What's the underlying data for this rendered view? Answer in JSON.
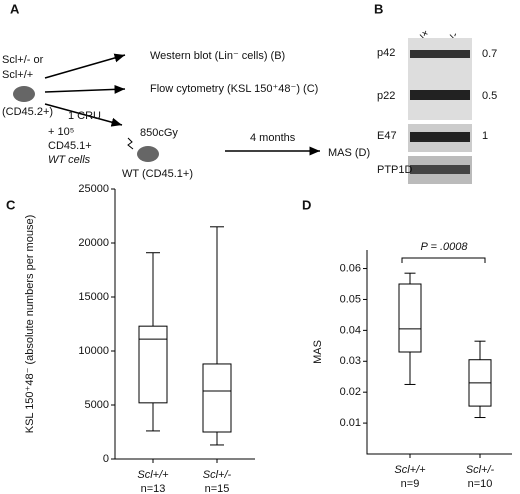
{
  "panel_a": {
    "label": "A",
    "donor_1": "Scl+/- or",
    "donor_2": "Scl+/+",
    "donor_3": "(CD45.2+)",
    "western": "Western blot (Lin⁻ cells) (B)",
    "flow": "Flow cytometry (KSL 150⁺48⁻) (C)",
    "cru": "1 CRU",
    "cells_1": "+ 10⁵",
    "cells_2": "CD45.1+",
    "cells_3": "WT cells",
    "dose": "850cGy",
    "recipient": "WT (CD45.1+)",
    "time": "4 months",
    "mas": "MAS (D)"
  },
  "panel_b": {
    "label": "B",
    "lanes": [
      "Scl+/+",
      "Scl+/-"
    ],
    "proteins": [
      "p42",
      "p22",
      "E47",
      "PTP1D"
    ],
    "ratios": [
      "0.7",
      "0.5",
      "1"
    ]
  },
  "chart_data": [
    {
      "type": "box",
      "panel": "C",
      "ylabel": "KSL 150⁺48⁻ (absolute numbers per mouse)",
      "categories": [
        "Scl+/+",
        "Scl+/-"
      ],
      "annotations": [
        "n=13",
        "n=15"
      ],
      "boxes": [
        {
          "low": 2600,
          "q1": 5200,
          "median": 11100,
          "q3": 12300,
          "high": 19100
        },
        {
          "low": 1300,
          "q1": 2500,
          "median": 6300,
          "q3": 8800,
          "high": 21500
        }
      ],
      "ylim": [
        0,
        25000
      ],
      "yticks": [
        0,
        5000,
        10000,
        15000,
        20000,
        25000
      ]
    },
    {
      "type": "box",
      "panel": "D",
      "ylabel": "MAS",
      "categories": [
        "Scl+/+",
        "Scl+/-"
      ],
      "annotations": [
        "n=9",
        "n=10"
      ],
      "p_value": "P = .0008",
      "boxes": [
        {
          "low": 0.0225,
          "q1": 0.033,
          "median": 0.0405,
          "q3": 0.055,
          "high": 0.0585
        },
        {
          "low": 0.0118,
          "q1": 0.0155,
          "median": 0.023,
          "q3": 0.0305,
          "high": 0.0365
        }
      ],
      "ylim": [
        0,
        0.066
      ],
      "yticks": [
        0.01,
        0.02,
        0.03,
        0.04,
        0.05,
        0.06
      ]
    }
  ]
}
